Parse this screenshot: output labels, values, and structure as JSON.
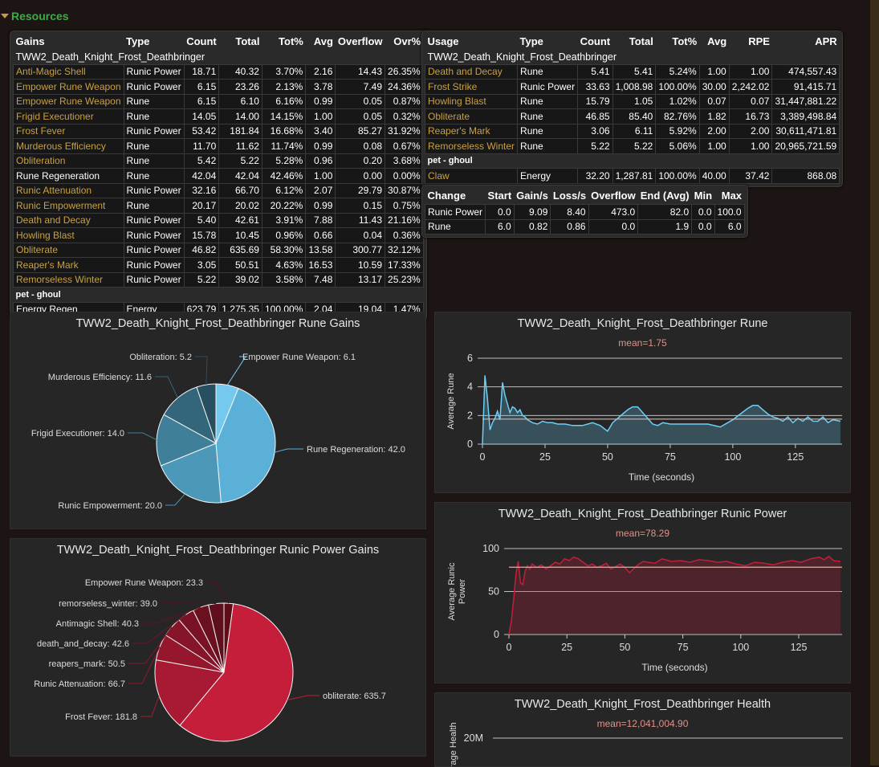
{
  "section": {
    "title": "Resources"
  },
  "gains": {
    "headers": [
      "Gains",
      "Type",
      "Count",
      "Total",
      "Tot%",
      "Avg",
      "Overflow",
      "Ovr%"
    ],
    "player": "TWW2_Death_Knight_Frost_Deathbringer",
    "rows": [
      {
        "name": "Anti-Magic Shell",
        "link": true,
        "cells": [
          "Runic Power",
          "18.71",
          "40.32",
          "3.70%",
          "2.16",
          "14.43",
          "26.35%"
        ]
      },
      {
        "name": "Empower Rune Weapon",
        "link": true,
        "cells": [
          "Runic Power",
          "6.15",
          "23.26",
          "2.13%",
          "3.78",
          "7.49",
          "24.36%"
        ]
      },
      {
        "name": "Empower Rune Weapon",
        "link": true,
        "cells": [
          "Rune",
          "6.15",
          "6.10",
          "6.16%",
          "0.99",
          "0.05",
          "0.87%"
        ]
      },
      {
        "name": "Frigid Executioner",
        "link": true,
        "cells": [
          "Rune",
          "14.05",
          "14.00",
          "14.15%",
          "1.00",
          "0.05",
          "0.32%"
        ]
      },
      {
        "name": "Frost Fever",
        "link": true,
        "cells": [
          "Runic Power",
          "53.42",
          "181.84",
          "16.68%",
          "3.40",
          "85.27",
          "31.92%"
        ]
      },
      {
        "name": "Murderous Efficiency",
        "link": true,
        "cells": [
          "Rune",
          "11.70",
          "11.62",
          "11.74%",
          "0.99",
          "0.08",
          "0.67%"
        ]
      },
      {
        "name": "Obliteration",
        "link": true,
        "cells": [
          "Rune",
          "5.42",
          "5.22",
          "5.28%",
          "0.96",
          "0.20",
          "3.68%"
        ]
      },
      {
        "name": "Rune Regeneration",
        "link": false,
        "cells": [
          "Rune",
          "42.04",
          "42.04",
          "42.46%",
          "1.00",
          "0.00",
          "0.00%"
        ]
      },
      {
        "name": "Runic Attenuation",
        "link": true,
        "cells": [
          "Runic Power",
          "32.16",
          "66.70",
          "6.12%",
          "2.07",
          "29.79",
          "30.87%"
        ]
      },
      {
        "name": "Runic Empowerment",
        "link": true,
        "cells": [
          "Rune",
          "20.17",
          "20.02",
          "20.22%",
          "0.99",
          "0.15",
          "0.75%"
        ]
      },
      {
        "name": "Death and Decay",
        "link": true,
        "cells": [
          "Runic Power",
          "5.40",
          "42.61",
          "3.91%",
          "7.88",
          "11.43",
          "21.16%"
        ]
      },
      {
        "name": "Howling Blast",
        "link": true,
        "cells": [
          "Runic Power",
          "15.78",
          "10.45",
          "0.96%",
          "0.66",
          "0.04",
          "0.36%"
        ]
      },
      {
        "name": "Obliterate",
        "link": true,
        "cells": [
          "Runic Power",
          "46.82",
          "635.69",
          "58.30%",
          "13.58",
          "300.77",
          "32.12%"
        ]
      },
      {
        "name": "Reaper's Mark",
        "link": true,
        "cells": [
          "Runic Power",
          "3.05",
          "50.51",
          "4.63%",
          "16.53",
          "10.59",
          "17.33%"
        ]
      },
      {
        "name": "Remorseless Winter",
        "link": true,
        "cells": [
          "Runic Power",
          "5.22",
          "39.02",
          "3.58%",
          "7.48",
          "13.17",
          "25.23%"
        ]
      }
    ],
    "pet": "pet - ghoul",
    "pet_rows": [
      {
        "name": "Energy Regen",
        "link": false,
        "cells": [
          "Energy",
          "623.79",
          "1,275.35",
          "100.00%",
          "2.04",
          "19.04",
          "1.47%"
        ]
      }
    ]
  },
  "usage": {
    "headers": [
      "Usage",
      "Type",
      "Count",
      "Total",
      "Tot%",
      "Avg",
      "RPE",
      "APR"
    ],
    "player": "TWW2_Death_Knight_Frost_Deathbringer",
    "rows": [
      {
        "name": "Death and Decay",
        "link": true,
        "cells": [
          "Rune",
          "5.41",
          "5.41",
          "5.24%",
          "1.00",
          "1.00",
          "474,557.43"
        ]
      },
      {
        "name": "Frost Strike",
        "link": true,
        "cells": [
          "Runic Power",
          "33.63",
          "1,008.98",
          "100.00%",
          "30.00",
          "2,242.02",
          "91,415.71"
        ]
      },
      {
        "name": "Howling Blast",
        "link": true,
        "cells": [
          "Rune",
          "15.79",
          "1.05",
          "1.02%",
          "0.07",
          "0.07",
          "31,447,881.22"
        ]
      },
      {
        "name": "Obliterate",
        "link": true,
        "cells": [
          "Rune",
          "46.85",
          "85.40",
          "82.76%",
          "1.82",
          "16.73",
          "3,389,498.84"
        ]
      },
      {
        "name": "Reaper's Mark",
        "link": true,
        "cells": [
          "Rune",
          "3.06",
          "6.11",
          "5.92%",
          "2.00",
          "2.00",
          "30,611,471.81"
        ]
      },
      {
        "name": "Remorseless Winter",
        "link": true,
        "cells": [
          "Rune",
          "5.22",
          "5.22",
          "5.06%",
          "1.00",
          "1.00",
          "20,965,721.59"
        ]
      }
    ],
    "pet": "pet - ghoul",
    "pet_rows": [
      {
        "name": "Claw",
        "link": true,
        "cells": [
          "Energy",
          "32.20",
          "1,287.81",
          "100.00%",
          "40.00",
          "37.42",
          "868.08"
        ]
      }
    ]
  },
  "change": {
    "headers": [
      "Change",
      "Start",
      "Gain/s",
      "Loss/s",
      "Overflow",
      "End (Avg)",
      "Min",
      "Max"
    ],
    "rows": [
      {
        "name": "Runic Power",
        "cells": [
          "0.0",
          "9.09",
          "8.40",
          "473.0",
          "82.0",
          "0.0",
          "100.0"
        ]
      },
      {
        "name": "Rune",
        "cells": [
          "6.0",
          "0.82",
          "0.86",
          "0.0",
          "1.9",
          "0.0",
          "6.0"
        ]
      }
    ]
  },
  "chart_data": [
    {
      "type": "pie",
      "title": "TWW2_Death_Knight_Frost_Deathbringer Rune Gains",
      "slices": [
        {
          "label": "Empower Rune Weapon",
          "value": 6.1,
          "color": "#75c9ef"
        },
        {
          "label": "Rune Regeneration",
          "value": 42.0,
          "color": "#5ab0d6"
        },
        {
          "label": "Runic Empowerment",
          "value": 20.0,
          "color": "#4c98b8"
        },
        {
          "label": "Frigid Executioner",
          "value": 14.0,
          "color": "#3f7f99"
        },
        {
          "label": "Murderous Efficiency",
          "value": 11.6,
          "color": "#33667b"
        },
        {
          "label": "Obliteration",
          "value": 5.2,
          "color": "#284f60"
        }
      ]
    },
    {
      "type": "pie",
      "title": "TWW2_Death_Knight_Frost_Deathbringer Runic Power Gains",
      "slices": [
        {
          "label": "Empower Rune Weapon",
          "value": 23.3,
          "color": "#5c0d16"
        },
        {
          "label": "obliterate",
          "value": 635.7,
          "color": "#c41e3a"
        },
        {
          "label": "Frost Fever",
          "value": 181.8,
          "color": "#a81a33"
        },
        {
          "label": "Runic Attenuation",
          "value": 66.7,
          "color": "#94172d"
        },
        {
          "label": "reapers_mark",
          "value": 50.5,
          "color": "#861529"
        },
        {
          "label": "death_and_decay",
          "value": 42.6,
          "color": "#781224"
        },
        {
          "label": "Antimagic Shell",
          "value": 40.3,
          "color": "#6a101f"
        },
        {
          "label": "remorseless_winter",
          "value": 39.0,
          "color": "#5f0e1c"
        }
      ]
    },
    {
      "type": "area",
      "title": "TWW2_Death_Knight_Frost_Deathbringer Rune",
      "mean_label": "mean=1.75",
      "mean": 1.75,
      "xlabel": "Time (seconds)",
      "ylabel": "Average Rune",
      "xlim": [
        0,
        143
      ],
      "ylim": [
        0,
        6
      ],
      "xticks": [
        0,
        25,
        50,
        75,
        100,
        125
      ],
      "yticks": [
        0,
        2,
        4,
        6
      ],
      "color": "#6ccff6",
      "x": [
        0,
        1,
        2,
        3,
        4,
        5,
        6,
        7,
        8,
        9,
        10,
        11,
        12,
        13,
        14,
        15,
        16,
        17,
        18,
        20,
        22,
        24,
        26,
        28,
        30,
        33,
        36,
        40,
        44,
        47,
        50,
        52,
        54,
        56,
        58,
        60,
        62,
        64,
        66,
        68,
        70,
        72,
        75,
        80,
        85,
        90,
        95,
        100,
        103,
        106,
        108,
        110,
        112,
        114,
        116,
        118,
        120,
        122,
        124,
        126,
        128,
        130,
        132,
        134,
        136,
        138,
        140,
        143
      ],
      "y": [
        0,
        4.8,
        3.2,
        1.0,
        1.5,
        1.8,
        2.3,
        1.7,
        4.3,
        3.4,
        2.8,
        2.2,
        2.6,
        2.5,
        2.2,
        2.4,
        2.0,
        1.9,
        1.7,
        1.5,
        1.4,
        1.6,
        1.5,
        1.5,
        1.4,
        1.4,
        1.3,
        1.3,
        1.5,
        1.3,
        0.9,
        1.5,
        1.8,
        2.1,
        2.4,
        2.6,
        2.6,
        2.2,
        1.8,
        1.4,
        1.3,
        1.5,
        1.4,
        1.4,
        1.4,
        1.4,
        1.2,
        1.7,
        2.1,
        2.5,
        2.7,
        2.7,
        2.4,
        2.1,
        1.9,
        1.8,
        1.6,
        1.9,
        1.5,
        1.8,
        1.6,
        1.9,
        1.6,
        1.6,
        1.9,
        1.5,
        1.7,
        1.6
      ]
    },
    {
      "type": "area",
      "title": "TWW2_Death_Knight_Frost_Deathbringer Runic Power",
      "mean_label": "mean=78.29",
      "mean": 78.29,
      "xlabel": "Time (seconds)",
      "ylabel": "Average Runic Power",
      "xlim": [
        0,
        143
      ],
      "ylim": [
        0,
        100
      ],
      "xticks": [
        0,
        25,
        50,
        75,
        100,
        125
      ],
      "yticks": [
        0,
        50,
        100
      ],
      "color": "#c41e3a",
      "x": [
        0,
        1,
        2,
        3,
        4,
        5,
        6,
        7,
        8,
        9,
        10,
        12,
        14,
        16,
        18,
        20,
        22,
        24,
        26,
        28,
        30,
        32,
        34,
        36,
        38,
        40,
        42,
        44,
        46,
        48,
        50,
        52,
        54,
        56,
        58,
        60,
        63,
        66,
        70,
        74,
        78,
        82,
        86,
        90,
        94,
        98,
        102,
        106,
        110,
        114,
        118,
        122,
        126,
        130,
        134,
        136,
        138,
        140,
        143
      ],
      "y": [
        0,
        15,
        40,
        70,
        85,
        60,
        58,
        74,
        80,
        76,
        82,
        78,
        81,
        76,
        80,
        84,
        82,
        88,
        86,
        90,
        88,
        84,
        80,
        82,
        78,
        80,
        83,
        76,
        79,
        82,
        78,
        72,
        77,
        82,
        85,
        84,
        83,
        88,
        85,
        86,
        84,
        87,
        86,
        84,
        85,
        82,
        80,
        84,
        83,
        81,
        84,
        86,
        84,
        88,
        90,
        87,
        91,
        86,
        85
      ]
    },
    {
      "type": "area",
      "title": "TWW2_Death_Knight_Frost_Deathbringer Health",
      "mean_label": "mean=12,041,004.90",
      "ylabel": "Average Health",
      "yticks_label": [
        "20M"
      ]
    }
  ]
}
